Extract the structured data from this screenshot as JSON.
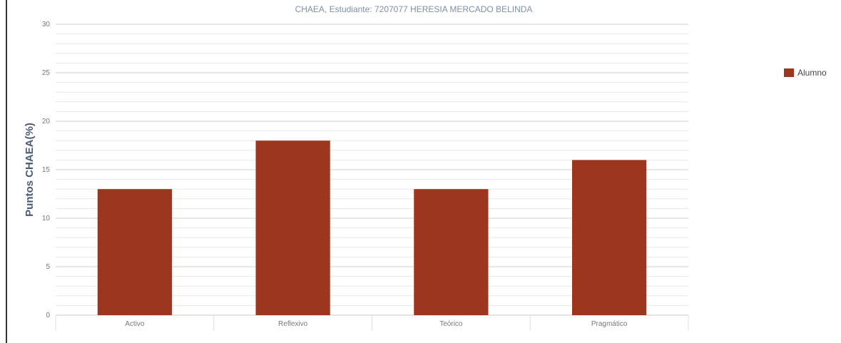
{
  "chart_data": {
    "type": "bar",
    "title": "CHAEA, Estudiante: 7207077 HERESIA MERCADO BELINDA",
    "ylabel": "Puntos CHAEA(%)",
    "xlabel": "",
    "categories": [
      "Activo",
      "Reflexivo",
      "Teórico",
      "Pragmático"
    ],
    "series": [
      {
        "name": "Alumno",
        "values": [
          13,
          18,
          13,
          16
        ]
      }
    ],
    "ylim": [
      0,
      30
    ],
    "yticks": [
      0,
      5,
      10,
      15,
      20,
      25,
      30
    ],
    "grid": true,
    "legend_position": "right",
    "colors": {
      "bar": "#9c361e",
      "grid": "#d8d8d8",
      "title": "#7f8fa8"
    }
  }
}
